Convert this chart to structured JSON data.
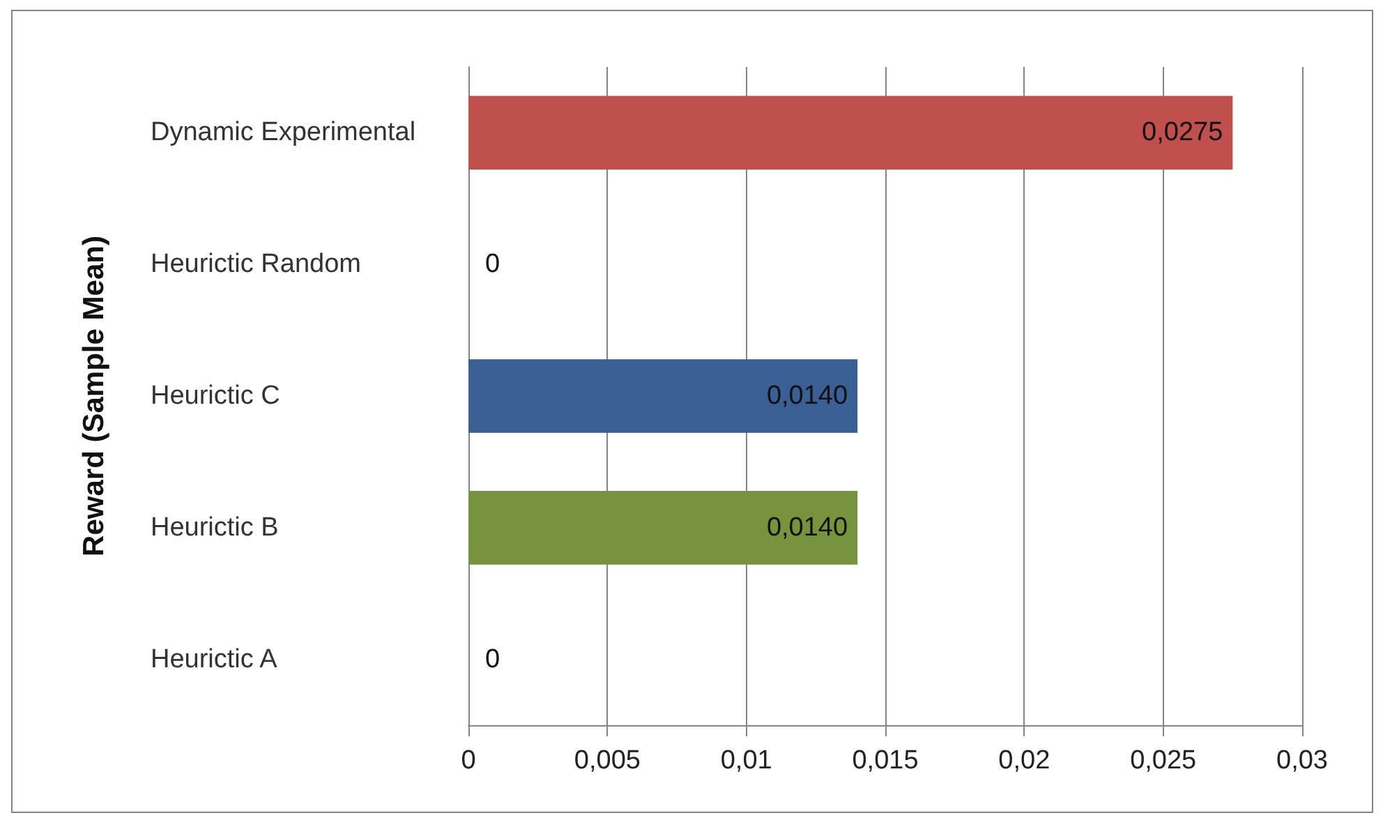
{
  "chart_data": {
    "type": "bar",
    "orientation": "horizontal",
    "ylabel": "Reward (Sample Mean)",
    "categories": [
      "Dynamic Experimental",
      "Heurictic Random",
      "Heurictic C",
      "Heurictic B",
      "Heurictic A"
    ],
    "values": [
      0.0275,
      0,
      0.014,
      0.014,
      0
    ],
    "colors": [
      "#c0504d",
      null,
      "#3a5f94",
      "#77933c",
      null
    ],
    "value_labels": [
      "0,0275",
      "0",
      "0,0140",
      "0,0140",
      "0"
    ],
    "xlim": [
      0,
      0.03
    ],
    "xticks": [
      0,
      {
        "value": 0.005,
        "label": "0,005"
      },
      {
        "value": 0.01,
        "label": "0,01"
      },
      {
        "value": 0.015,
        "label": "0,015"
      },
      {
        "value": 0.02,
        "label": "0,02"
      },
      {
        "value": 0.025,
        "label": "0,025"
      },
      {
        "value": 0.03,
        "label": "0,03"
      }
    ],
    "grid": "x"
  }
}
